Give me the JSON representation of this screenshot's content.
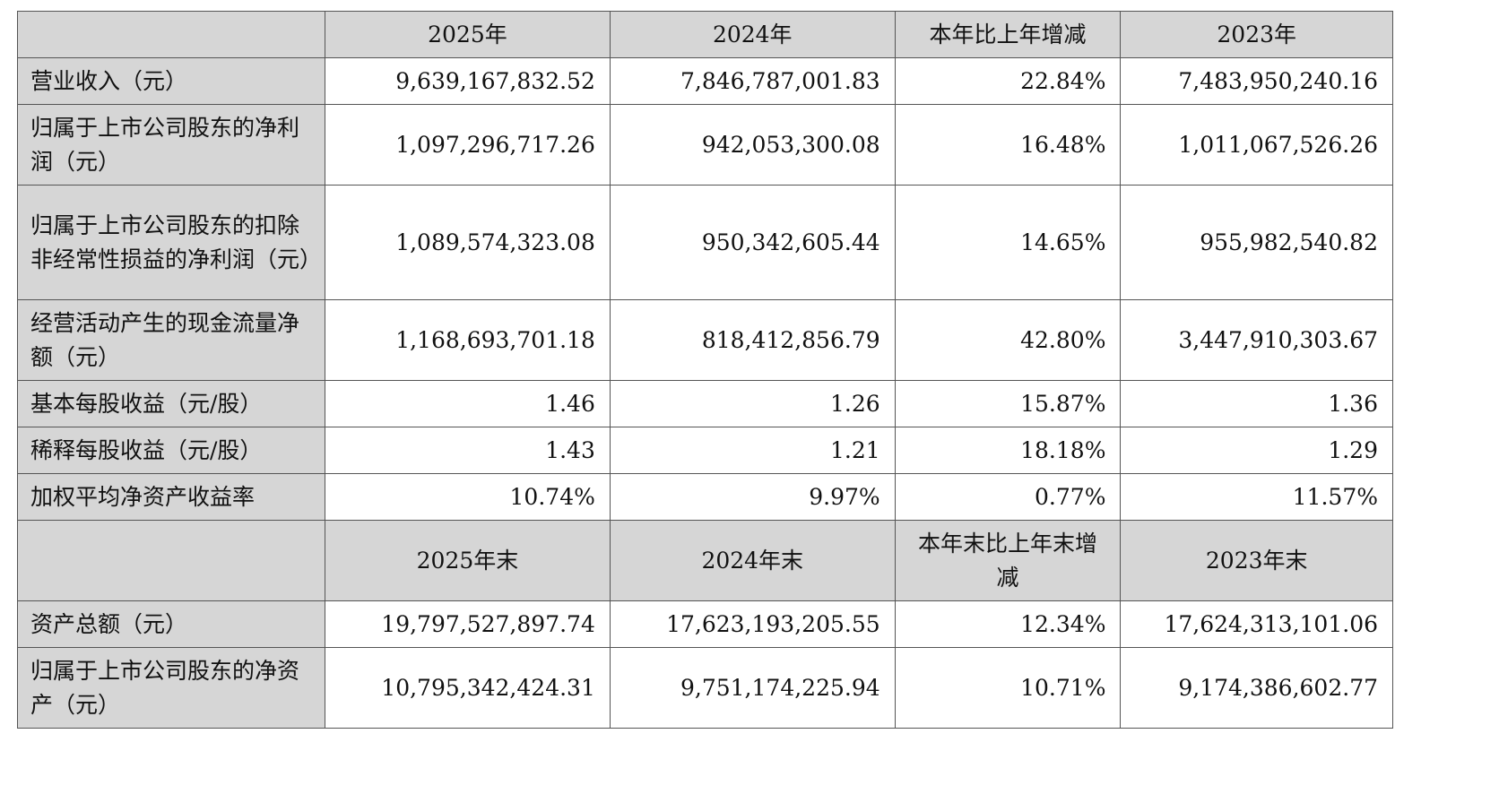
{
  "header": [
    "",
    "2025年",
    "2024年",
    "本年比上年增减",
    "2023年"
  ],
  "rows": [
    {
      "label": "营业收入（元）",
      "values": [
        "9,639,167,832.52",
        "7,846,787,001.83",
        "22.84%",
        "7,483,950,240.16"
      ]
    },
    {
      "label": "归属于上市公司股东的净利润（元）",
      "values": [
        "1,097,296,717.26",
        "942,053,300.08",
        "16.48%",
        "1,011,067,526.26"
      ]
    },
    {
      "label": "归属于上市公司股东的扣除非经常性损益的净利润（元）",
      "values": [
        "1,089,574,323.08",
        "950,342,605.44",
        "14.65%",
        "955,982,540.82"
      ]
    },
    {
      "label": "经营活动产生的现金流量净额（元）",
      "values": [
        "1,168,693,701.18",
        "818,412,856.79",
        "42.80%",
        "3,447,910,303.67"
      ]
    },
    {
      "label": "基本每股收益（元/股）",
      "values": [
        "1.46",
        "1.26",
        "15.87%",
        "1.36"
      ]
    },
    {
      "label": "稀释每股收益（元/股）",
      "values": [
        "1.43",
        "1.21",
        "18.18%",
        "1.29"
      ]
    },
    {
      "label": "加权平均净资产收益率",
      "values": [
        "10.74%",
        "9.97%",
        "0.77%",
        "11.57%"
      ]
    }
  ],
  "header2": [
    "",
    "2025年末",
    "2024年末",
    "本年末比上年末增减",
    "2023年末"
  ],
  "rows2": [
    {
      "label": "资产总额（元）",
      "values": [
        "19,797,527,897.74",
        "17,623,193,205.55",
        "12.34%",
        "17,624,313,101.06"
      ]
    },
    {
      "label": "归属于上市公司股东的净资产（元）",
      "values": [
        "10,795,342,424.31",
        "9,751,174,225.94",
        "10.71%",
        "9,174,386,602.77"
      ]
    }
  ]
}
